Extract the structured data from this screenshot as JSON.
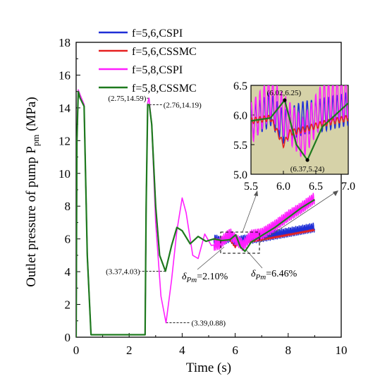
{
  "chart_data": {
    "type": "line",
    "xlabel": "Time (s)",
    "ylabel": "Outlet pressure of pump  P",
    "ylabel_sub": "pm",
    "ylabel_unit": " (MPa)",
    "xlim": [
      0,
      10
    ],
    "ylim": [
      0,
      18
    ],
    "x_ticks": [
      "0",
      "2",
      "4",
      "6",
      "8",
      "10"
    ],
    "y_ticks": [
      "0",
      "2",
      "4",
      "6",
      "8",
      "10",
      "12",
      "14",
      "16",
      "18"
    ],
    "legend_position": "top-left",
    "series": [
      {
        "name": "f=5,6,CSPI",
        "color": "#1f2fd6",
        "oscillation": 0.28,
        "points": [
          [
            0,
            0
          ],
          [
            0.03,
            12
          ],
          [
            0.08,
            15.0
          ],
          [
            0.15,
            14.6
          ],
          [
            0.3,
            14.1
          ],
          [
            0.42,
            5
          ],
          [
            0.56,
            0.15
          ],
          [
            2.6,
            0.15
          ],
          [
            2.64,
            8
          ],
          [
            2.7,
            14.2
          ],
          [
            2.76,
            14.19
          ],
          [
            2.85,
            13.0
          ],
          [
            3.0,
            8.0
          ],
          [
            3.15,
            5.0
          ],
          [
            3.37,
            4.03
          ],
          [
            3.6,
            5.6
          ],
          [
            3.8,
            6.7
          ],
          [
            4.0,
            6.5
          ],
          [
            4.3,
            5.7
          ],
          [
            4.6,
            6.15
          ],
          [
            4.9,
            5.85
          ],
          [
            5.2,
            6.0
          ],
          [
            5.5,
            5.85
          ],
          [
            5.8,
            6.1
          ],
          [
            6.0,
            5.8
          ],
          [
            6.3,
            5.95
          ],
          [
            6.6,
            6.0
          ],
          [
            7.0,
            6.1
          ],
          [
            7.5,
            6.25
          ],
          [
            8.0,
            6.4
          ],
          [
            8.5,
            6.55
          ],
          [
            9.0,
            6.7
          ]
        ]
      },
      {
        "name": "f=5,6,CSSMC",
        "color": "#e62020",
        "oscillation": 0.05,
        "points": [
          [
            0,
            0
          ],
          [
            0.03,
            12
          ],
          [
            0.08,
            15.0
          ],
          [
            0.15,
            14.6
          ],
          [
            0.3,
            14.1
          ],
          [
            0.42,
            5
          ],
          [
            0.56,
            0.15
          ],
          [
            2.6,
            0.15
          ],
          [
            2.64,
            8
          ],
          [
            2.7,
            14.2
          ],
          [
            2.76,
            14.19
          ],
          [
            2.85,
            13.0
          ],
          [
            3.0,
            8.0
          ],
          [
            3.15,
            5.0
          ],
          [
            3.37,
            4.03
          ],
          [
            3.6,
            5.6
          ],
          [
            3.8,
            6.7
          ],
          [
            4.0,
            6.5
          ],
          [
            4.3,
            5.7
          ],
          [
            4.6,
            6.15
          ],
          [
            4.9,
            5.85
          ],
          [
            5.2,
            6.0
          ],
          [
            5.5,
            5.9
          ],
          [
            5.8,
            5.95
          ],
          [
            6.0,
            5.5
          ],
          [
            6.1,
            5.7
          ],
          [
            6.3,
            5.75
          ],
          [
            6.6,
            5.85
          ],
          [
            7.0,
            5.95
          ],
          [
            7.5,
            6.1
          ],
          [
            8.0,
            6.25
          ],
          [
            8.5,
            6.4
          ],
          [
            9.0,
            6.55
          ]
        ]
      },
      {
        "name": "f=5,8,CSPI",
        "color": "#ff1fff",
        "oscillation": 0.35,
        "points": [
          [
            0,
            0
          ],
          [
            0.03,
            12
          ],
          [
            0.08,
            15.1
          ],
          [
            0.15,
            14.8
          ],
          [
            0.3,
            14.2
          ],
          [
            0.42,
            5
          ],
          [
            0.56,
            0.15
          ],
          [
            2.6,
            0.15
          ],
          [
            2.64,
            8
          ],
          [
            2.7,
            14.3
          ],
          [
            2.75,
            14.59
          ],
          [
            2.85,
            13.0
          ],
          [
            3.0,
            7.0
          ],
          [
            3.2,
            2.5
          ],
          [
            3.39,
            0.88
          ],
          [
            3.6,
            3.5
          ],
          [
            3.8,
            6.5
          ],
          [
            4.0,
            8.5
          ],
          [
            4.15,
            7.6
          ],
          [
            4.4,
            5.0
          ],
          [
            4.6,
            4.8
          ],
          [
            4.85,
            6.3
          ],
          [
            5.1,
            5.6
          ],
          [
            5.4,
            5.7
          ],
          [
            5.8,
            6.3
          ],
          [
            6.0,
            6.0
          ],
          [
            6.3,
            5.6
          ],
          [
            6.6,
            6.2
          ],
          [
            7.0,
            6.3
          ],
          [
            7.5,
            6.8
          ],
          [
            8.0,
            7.4
          ],
          [
            8.5,
            7.9
          ],
          [
            9.0,
            8.5
          ]
        ]
      },
      {
        "name": "f=5,8,CSSMC",
        "color": "#1e7a1e",
        "oscillation": 0.0,
        "points": [
          [
            0,
            0
          ],
          [
            0.03,
            12
          ],
          [
            0.08,
            15.0
          ],
          [
            0.15,
            14.6
          ],
          [
            0.3,
            14.1
          ],
          [
            0.42,
            5
          ],
          [
            0.56,
            0.15
          ],
          [
            2.6,
            0.15
          ],
          [
            2.64,
            8
          ],
          [
            2.7,
            14.2
          ],
          [
            2.76,
            14.19
          ],
          [
            2.85,
            13.0
          ],
          [
            3.0,
            8.0
          ],
          [
            3.15,
            5.0
          ],
          [
            3.37,
            4.03
          ],
          [
            3.6,
            5.6
          ],
          [
            3.8,
            6.7
          ],
          [
            4.0,
            6.5
          ],
          [
            4.3,
            5.7
          ],
          [
            4.6,
            6.15
          ],
          [
            4.9,
            5.85
          ],
          [
            5.2,
            6.0
          ],
          [
            5.5,
            5.9
          ],
          [
            5.8,
            5.95
          ],
          [
            6.02,
            6.25
          ],
          [
            6.2,
            5.5
          ],
          [
            6.37,
            5.24
          ],
          [
            6.6,
            5.8
          ],
          [
            7.0,
            6.2
          ],
          [
            7.5,
            6.7
          ],
          [
            8.0,
            7.3
          ],
          [
            8.5,
            7.9
          ],
          [
            9.0,
            8.4
          ]
        ]
      }
    ],
    "annotations": [
      {
        "text": "(2.75,14.59)",
        "x": 2.75,
        "y": 14.59
      },
      {
        "text": "(2.76,14.19)",
        "x": 2.76,
        "y": 14.19
      },
      {
        "text": "(3.37,4.03)",
        "x": 3.37,
        "y": 4.03
      },
      {
        "text": "(3.39,0.88)",
        "x": 3.39,
        "y": 0.88
      },
      {
        "text": "δ",
        "sub": "Pm",
        "value": "=2.10%"
      },
      {
        "text": "δ",
        "sub": "Pm",
        "value": "=6.46%"
      }
    ],
    "inset": {
      "xlim": [
        5.5,
        7.0
      ],
      "ylim": [
        5.0,
        6.5
      ],
      "x_ticks": [
        "5.5",
        "6.0",
        "6.5",
        "7.0"
      ],
      "y_ticks": [
        "5.0",
        "5.5",
        "6.0",
        "6.5"
      ],
      "background": "#d6d2a8",
      "zoom_box": {
        "x": [
          5.5,
          7.0
        ],
        "y": [
          5.0,
          6.5
        ]
      },
      "points": [
        {
          "text": "(6.02,6.25)",
          "x": 6.02,
          "y": 6.25
        },
        {
          "text": "(6.37,5.24)",
          "x": 6.37,
          "y": 5.24
        }
      ]
    }
  }
}
